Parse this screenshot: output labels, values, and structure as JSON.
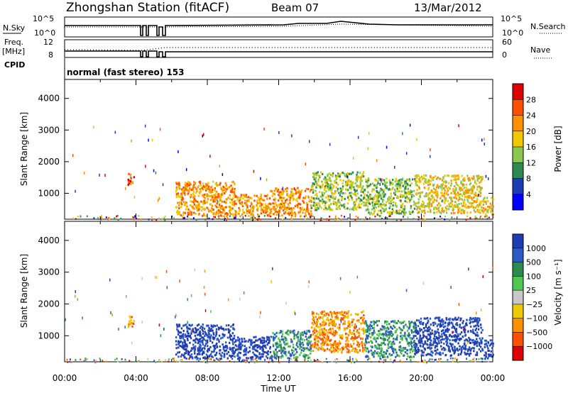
{
  "header": {
    "title": "Zhongshan Station (fitACF)",
    "beam": "Beam 07",
    "date": "13/Mar/2012"
  },
  "top_panels": {
    "nsky_label": "N.Sky",
    "nsearch_label": "N.Search",
    "noise_ticks": [
      "10^5",
      "10^0"
    ],
    "freq_label": "Freq.",
    "freq_unit": "[MHz]",
    "freq_ticks": [
      "12",
      "8"
    ],
    "nave_label": "Nave",
    "nave_ticks": [
      "60",
      "0"
    ],
    "cpid_label": "CPID",
    "cpid_text": "normal (fast stereo) 153"
  },
  "chart_data": [
    {
      "type": "heatmap",
      "name": "power-panel",
      "ylabel": "Slant Range [km]",
      "yticks": [
        1000,
        2000,
        3000,
        4000
      ],
      "xlim": [
        0,
        24
      ],
      "ylim": [
        180,
        4600
      ],
      "colorbar": {
        "label": "Power [dB]",
        "ticks": [
          "28",
          "24",
          "20",
          "16",
          "12",
          "8",
          "4"
        ],
        "colors": [
          "#e00000",
          "#ff5000",
          "#ff9000",
          "#f0c800",
          "#8cc850",
          "#2d8a50",
          "#1e3cb4",
          "#0000ff"
        ]
      },
      "patches": [
        {
          "t0": 6.2,
          "t1": 9.5,
          "r0": 300,
          "r1": 1400,
          "level": 2
        },
        {
          "t0": 9.5,
          "t1": 11.5,
          "r0": 300,
          "r1": 1000,
          "level": 2
        },
        {
          "t0": 11.5,
          "t1": 13.8,
          "r0": 300,
          "r1": 1200,
          "level": 2
        },
        {
          "t0": 13.8,
          "t1": 16.8,
          "r0": 500,
          "r1": 1700,
          "level": 4
        },
        {
          "t0": 16.8,
          "t1": 19.6,
          "r0": 350,
          "r1": 1500,
          "level": 4
        },
        {
          "t0": 19.6,
          "t1": 23.4,
          "r0": 400,
          "r1": 1600,
          "level": 3
        },
        {
          "t0": 23.4,
          "t1": 24.0,
          "r0": 300,
          "r1": 900,
          "level": 3
        },
        {
          "t0": 3.5,
          "t1": 3.9,
          "r0": 1300,
          "r1": 1650,
          "level": 1
        }
      ]
    },
    {
      "type": "heatmap",
      "name": "velocity-panel",
      "ylabel": "Slant Range [km]",
      "xlabel": "Time UT",
      "xticks": [
        "00:00",
        "04:00",
        "08:00",
        "12:00",
        "16:00",
        "20:00",
        "00:00"
      ],
      "yticks": [
        1000,
        2000,
        3000,
        4000
      ],
      "xlim": [
        0,
        24
      ],
      "ylim": [
        180,
        4600
      ],
      "colorbar": {
        "label": "Velocity [m s⁻¹]",
        "ticks": [
          "1000",
          "500",
          "100",
          "25",
          "−25",
          "−100",
          "−500",
          "−1000"
        ],
        "colors": [
          "#1e3cb4",
          "#2d5ac8",
          "#2d8a50",
          "#50c850",
          "#c8c8c8",
          "#f0c800",
          "#ff9000",
          "#ff5000",
          "#e00000"
        ]
      },
      "patches": [
        {
          "t0": 6.2,
          "t1": 9.5,
          "r0": 300,
          "r1": 1400,
          "level": 0
        },
        {
          "t0": 9.5,
          "t1": 11.5,
          "r0": 300,
          "r1": 1000,
          "level": 0
        },
        {
          "t0": 11.5,
          "t1": 13.8,
          "r0": 300,
          "r1": 1200,
          "level": 2
        },
        {
          "t0": 13.8,
          "t1": 16.8,
          "r0": 500,
          "r1": 1800,
          "level": 6
        },
        {
          "t0": 16.8,
          "t1": 19.6,
          "r0": 350,
          "r1": 1500,
          "level": 2
        },
        {
          "t0": 19.6,
          "t1": 23.4,
          "r0": 400,
          "r1": 1600,
          "level": 0
        },
        {
          "t0": 23.4,
          "t1": 24.0,
          "r0": 300,
          "r1": 900,
          "level": 0
        },
        {
          "t0": 3.5,
          "t1": 3.9,
          "r0": 1300,
          "r1": 1650,
          "level": 6
        }
      ]
    }
  ]
}
